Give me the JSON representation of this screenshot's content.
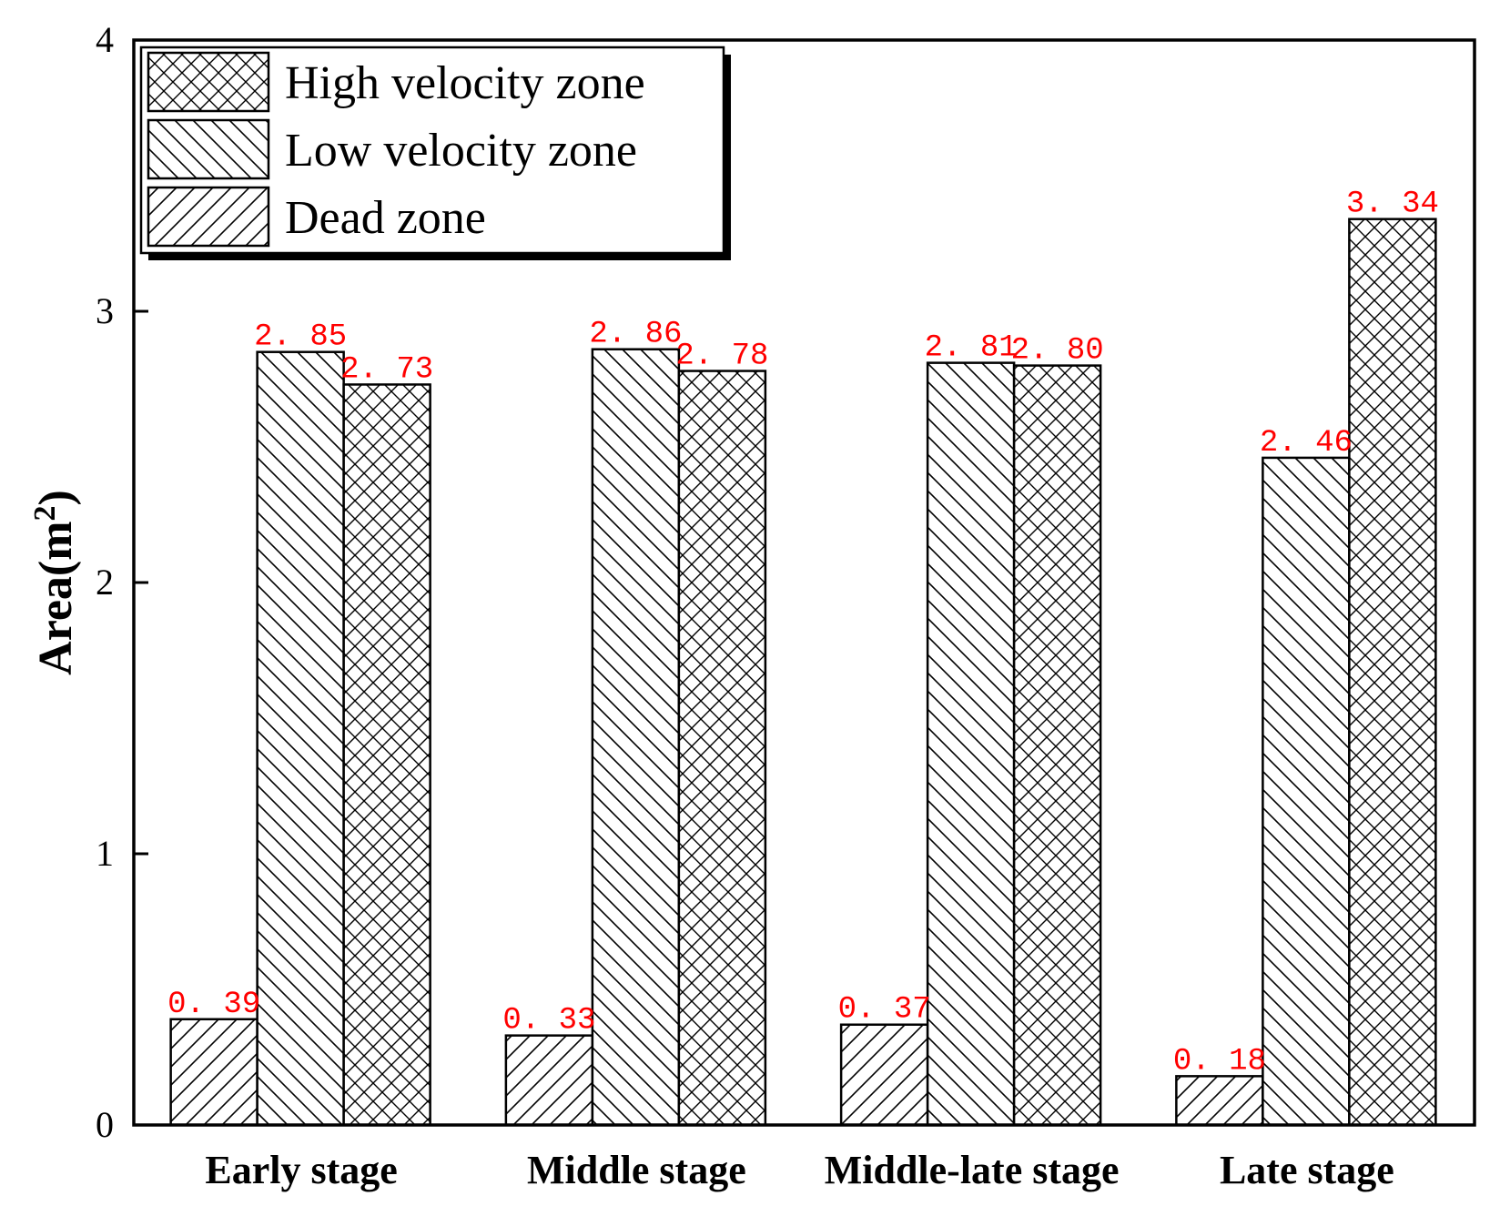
{
  "chart_data": {
    "type": "bar",
    "title": "",
    "xlabel": "",
    "ylabel": "Area(m",
    "ylabel_superscript": "2",
    "ylabel_close": ")",
    "ylim": [
      0,
      4
    ],
    "yticks": [
      "0",
      "1",
      "2",
      "3",
      "4"
    ],
    "ytick_values": [
      0,
      1,
      2,
      3,
      4
    ],
    "categories": [
      "Early stage",
      "Middle stage",
      "Middle-late stage",
      "Late stage"
    ],
    "series": [
      {
        "name": "Dead zone",
        "pattern": "forward-diagonal",
        "values": [
          0.39,
          0.33,
          0.37,
          0.18
        ],
        "labels": [
          "0. 39",
          "0. 33",
          "0. 37",
          "0. 18"
        ]
      },
      {
        "name": "Low velocity zone",
        "pattern": "back-diagonal",
        "values": [
          2.85,
          2.86,
          2.81,
          2.46
        ],
        "labels": [
          "2. 85",
          "2. 86",
          "2. 81",
          "2. 46"
        ]
      },
      {
        "name": "High velocity zone",
        "pattern": "crosshatch",
        "values": [
          2.73,
          2.78,
          2.8,
          3.34
        ],
        "labels": [
          "2. 73",
          "2. 78",
          "2. 80",
          "3. 34"
        ]
      }
    ],
    "legend": {
      "position": "top-left",
      "order": [
        "High velocity zone",
        "Low velocity zone",
        "Dead zone"
      ]
    },
    "data_label_color": "#ff0000",
    "grid": false
  }
}
